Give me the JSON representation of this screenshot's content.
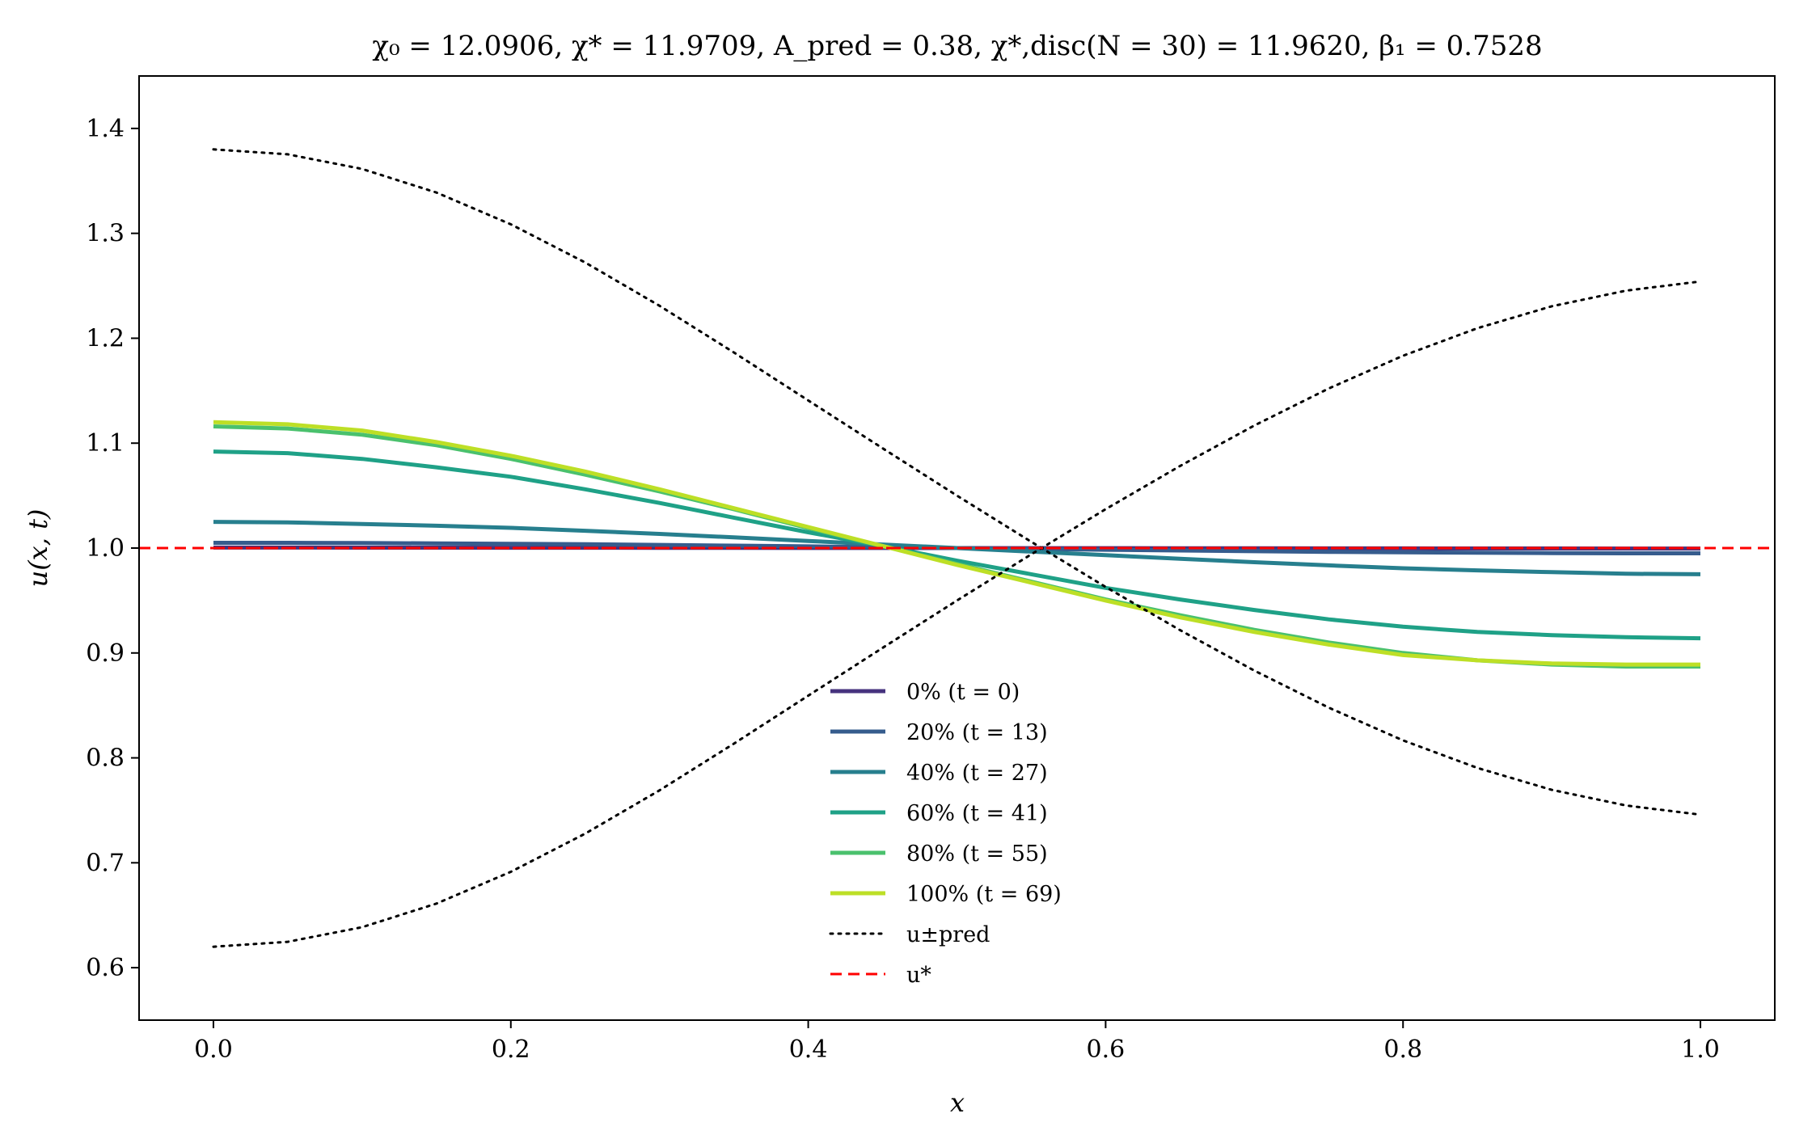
{
  "chart_data": {
    "type": "line",
    "title": "χ₀ = 12.0906,  χ* = 11.9709,  A_pred = 0.38,  χ*,disc(N = 30) = 11.9620,  β₁ = 0.7528",
    "xlabel": "x",
    "ylabel": "u(x, t)",
    "xlim": [
      -0.05,
      1.05
    ],
    "ylim": [
      0.55,
      1.45
    ],
    "xticks": [
      0.0,
      0.2,
      0.4,
      0.6,
      0.8,
      1.0
    ],
    "xtick_labels": [
      "0.0",
      "0.2",
      "0.4",
      "0.6",
      "0.8",
      "1.0"
    ],
    "yticks": [
      0.6,
      0.7,
      0.8,
      0.9,
      1.0,
      1.1,
      1.2,
      1.3,
      1.4
    ],
    "ytick_labels": [
      "0.6",
      "0.7",
      "0.8",
      "0.9",
      "1.0",
      "1.1",
      "1.2",
      "1.3",
      "1.4"
    ],
    "grid": false,
    "legend_position": "lower-center",
    "x": [
      0.0,
      0.05,
      0.1,
      0.15,
      0.2,
      0.25,
      0.3,
      0.35,
      0.4,
      0.45,
      0.5,
      0.55,
      0.6,
      0.65,
      0.7,
      0.75,
      0.8,
      0.85,
      0.9,
      0.95,
      1.0
    ],
    "series": [
      {
        "name": "0% (t = 0)",
        "color": "#46327e",
        "style": "solid",
        "values": [
          1.0005,
          1.0005,
          1.0004,
          1.0004,
          1.0003,
          1.0003,
          1.0002,
          1.0002,
          1.0001,
          1.0001,
          1.0,
          0.9999,
          0.9999,
          0.9998,
          0.9998,
          0.9997,
          0.9997,
          0.9996,
          0.9996,
          0.9995,
          0.9995
        ]
      },
      {
        "name": "20% (t = 13)",
        "color": "#365c8d",
        "style": "solid",
        "values": [
          1.005,
          1.005,
          1.0048,
          1.0045,
          1.0041,
          1.0036,
          1.003,
          1.0023,
          1.0016,
          1.0008,
          1.0,
          0.9992,
          0.9984,
          0.9977,
          0.997,
          0.9964,
          0.9959,
          0.9955,
          0.9952,
          0.995,
          0.995
        ]
      },
      {
        "name": "40% (t = 27)",
        "color": "#277f8e",
        "style": "solid",
        "values": [
          1.025,
          1.0245,
          1.023,
          1.0213,
          1.0193,
          1.0165,
          1.0135,
          1.0102,
          1.0068,
          1.0034,
          1.0,
          0.9966,
          0.9932,
          0.9898,
          0.9865,
          0.9835,
          0.9807,
          0.9787,
          0.977,
          0.9755,
          0.975
        ]
      },
      {
        "name": "60% (t = 41)",
        "color": "#1fa187",
        "style": "solid",
        "values": [
          1.092,
          1.0905,
          1.085,
          1.077,
          1.068,
          1.056,
          1.043,
          1.029,
          1.015,
          1.002,
          0.988,
          0.975,
          0.962,
          0.951,
          0.941,
          0.932,
          0.925,
          0.92,
          0.917,
          0.915,
          0.914
        ]
      },
      {
        "name": "80% (t = 55)",
        "color": "#4ac16d",
        "style": "solid",
        "values": [
          1.116,
          1.114,
          1.108,
          1.098,
          1.085,
          1.07,
          1.054,
          1.037,
          1.019,
          1.002,
          0.985,
          0.968,
          0.951,
          0.936,
          0.922,
          0.91,
          0.9,
          0.893,
          0.889,
          0.887,
          0.887
        ]
      },
      {
        "name": "100% (t = 69)",
        "color": "#bddf26",
        "style": "solid",
        "values": [
          1.12,
          1.118,
          1.112,
          1.101,
          1.088,
          1.073,
          1.056,
          1.038,
          1.02,
          1.002,
          0.984,
          0.967,
          0.95,
          0.934,
          0.92,
          0.908,
          0.898,
          0.893,
          0.89,
          0.889,
          0.889
        ]
      },
      {
        "name": "u±pred",
        "color": "#000000",
        "style": "dotted",
        "values": [
          1.38,
          1.3753,
          1.3614,
          1.3389,
          1.3086,
          1.2722,
          1.2309,
          1.1865,
          1.1407,
          1.0952,
          1.05,
          1.0059,
          0.9629,
          0.9218,
          0.8832,
          0.8479,
          0.8167,
          0.7904,
          0.7695,
          0.7546,
          0.7459
        ]
      },
      {
        "name": "u±pred (lower)",
        "color": "#000000",
        "style": "dotted",
        "values": [
          0.62,
          0.6247,
          0.6386,
          0.6611,
          0.6914,
          0.7278,
          0.7691,
          0.8135,
          0.8593,
          0.9048,
          0.95,
          0.9941,
          1.0371,
          1.0782,
          1.1168,
          1.1521,
          1.1833,
          1.2096,
          1.2305,
          1.2454,
          1.2541
        ]
      },
      {
        "name": "u*",
        "color": "#ff0000",
        "style": "dashed",
        "values": [
          1.0,
          1.0,
          1.0,
          1.0,
          1.0,
          1.0,
          1.0,
          1.0,
          1.0,
          1.0,
          1.0,
          1.0,
          1.0,
          1.0,
          1.0,
          1.0,
          1.0,
          1.0,
          1.0,
          1.0,
          1.0
        ]
      }
    ],
    "legend": [
      {
        "label": "0% (t = 0)",
        "color": "#46327e",
        "style": "solid"
      },
      {
        "label": "20% (t = 13)",
        "color": "#365c8d",
        "style": "solid"
      },
      {
        "label": "40% (t = 27)",
        "color": "#277f8e",
        "style": "solid"
      },
      {
        "label": "60% (t = 41)",
        "color": "#1fa187",
        "style": "solid"
      },
      {
        "label": "80% (t = 55)",
        "color": "#4ac16d",
        "style": "solid"
      },
      {
        "label": "100% (t = 69)",
        "color": "#bddf26",
        "style": "solid"
      },
      {
        "label": "u±pred",
        "color": "#000000",
        "style": "dotted"
      },
      {
        "label": "u*",
        "color": "#ff0000",
        "style": "dashed"
      }
    ]
  }
}
